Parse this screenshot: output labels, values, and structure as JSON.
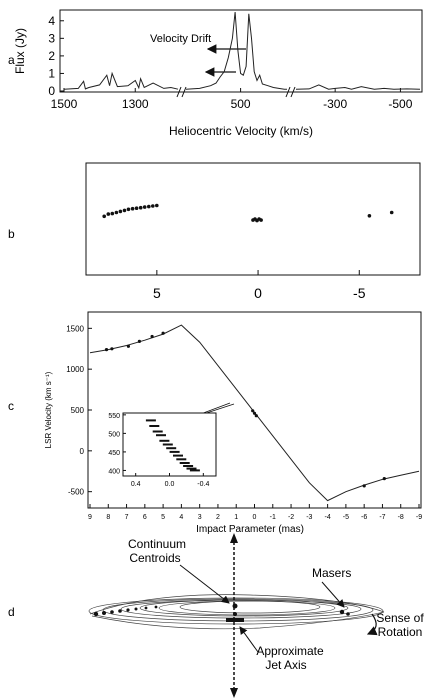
{
  "panel_labels": [
    "a",
    "b",
    "c",
    "d"
  ],
  "chart_data": [
    {
      "id": "a",
      "type": "line",
      "ylabel": "Flux (Jy)",
      "xlabel": "Heliocentric Velocity (km/s)",
      "xticks": [
        "1500",
        "1300",
        "500",
        "-300",
        "-500"
      ],
      "yticks": [
        "0",
        "1",
        "2",
        "3",
        "4"
      ],
      "ylim": [
        0,
        4.5
      ],
      "annotation": "Velocity Drift",
      "segments": [
        {
          "xlim": [
            1500,
            1180
          ],
          "x": [
            1500,
            1460,
            1445,
            1440,
            1430,
            1400,
            1380,
            1372,
            1365,
            1350,
            1320,
            1300,
            1290,
            1285,
            1275,
            1250,
            1220,
            1200,
            1180
          ],
          "y": [
            0.1,
            0.15,
            0.55,
            0.12,
            0.2,
            0.35,
            0.9,
            0.3,
            1.0,
            0.25,
            0.3,
            0.6,
            0.18,
            0.7,
            0.2,
            0.45,
            0.15,
            0.2,
            0.1
          ]
        },
        {
          "xlim": [
            700,
            330
          ],
          "x": [
            700,
            650,
            610,
            590,
            575,
            560,
            545,
            530,
            520,
            510,
            500,
            490,
            480,
            470,
            460,
            450,
            440,
            430,
            420,
            400,
            380,
            360,
            340,
            330
          ],
          "y": [
            0.1,
            0.15,
            0.3,
            0.45,
            0.8,
            1.1,
            1.9,
            3.0,
            4.5,
            2.3,
            1.0,
            0.9,
            1.4,
            4.4,
            3.0,
            1.1,
            0.6,
            0.9,
            0.4,
            0.3,
            0.2,
            0.15,
            0.1,
            0.1
          ]
        },
        {
          "xlim": [
            -180,
            -560
          ],
          "x": [
            -180,
            -220,
            -250,
            -280,
            -300,
            -330,
            -350,
            -380,
            -420,
            -450,
            -480,
            -520,
            -560
          ],
          "y": [
            0.1,
            0.12,
            0.35,
            0.1,
            0.15,
            0.2,
            0.1,
            0.25,
            0.1,
            0.15,
            0.1,
            0.12,
            0.1
          ]
        }
      ]
    },
    {
      "id": "b",
      "type": "scatter",
      "xticks": [
        "5",
        "0",
        "-5"
      ],
      "xlim": [
        8.5,
        -8
      ],
      "ylim": [
        -1,
        1
      ],
      "clusters": [
        {
          "x": [
            7.6,
            7.4,
            7.2,
            7.0,
            6.8,
            6.6,
            6.4,
            6.2,
            6.0,
            5.8,
            5.6,
            5.4,
            5.2,
            5.0
          ],
          "y": [
            0.05,
            0.09,
            0.1,
            0.12,
            0.14,
            0.16,
            0.18,
            0.19,
            0.2,
            0.21,
            0.22,
            0.23,
            0.24,
            0.25
          ]
        },
        {
          "x": [
            0.25,
            0.15,
            0.05,
            -0.05,
            -0.15
          ],
          "y": [
            -0.02,
            0.0,
            -0.03,
            0.0,
            -0.02
          ]
        },
        {
          "x": [
            -5.5,
            -6.6
          ],
          "y": [
            0.06,
            0.12
          ]
        }
      ]
    },
    {
      "id": "c",
      "type": "line",
      "ylabel": "LSR Velocity (km s⁻¹)",
      "xlabel": "Impact Parameter (mas)",
      "xticks": [
        "9",
        "8",
        "7",
        "6",
        "5",
        "4",
        "3",
        "2",
        "1",
        "0",
        "-1",
        "-2",
        "-3",
        "-4",
        "-5",
        "-6",
        "-7",
        "-8",
        "-9"
      ],
      "yticks": [
        "-500",
        "0",
        "500",
        "1000",
        "1500"
      ],
      "xlim": [
        9,
        -9
      ],
      "ylim": [
        -700,
        1700
      ],
      "model_x": [
        9,
        8,
        7,
        6,
        5,
        4,
        3,
        0,
        -3,
        -4,
        -5,
        -6,
        -7,
        -8,
        -9
      ],
      "model_y": [
        1200,
        1240,
        1290,
        1355,
        1430,
        1540,
        1330,
        470,
        -390,
        -610,
        -500,
        -420,
        -350,
        -300,
        -250
      ],
      "points": {
        "x": [
          8.1,
          7.8,
          6.9,
          6.3,
          5.6,
          5.0,
          0.1,
          0.0,
          -0.1,
          -6.0,
          -7.1
        ],
        "y": [
          1240,
          1250,
          1280,
          1340,
          1400,
          1440,
          490,
          460,
          430,
          -430,
          -340
        ]
      },
      "inset": {
        "xticks": [
          "0.4",
          "0.0",
          "-0.4"
        ],
        "yticks": [
          "550",
          "500",
          "450",
          "400"
        ],
        "xlim": [
          0.55,
          -0.55
        ],
        "ylim": [
          385,
          555
        ],
        "points": {
          "x": [
            0.22,
            0.18,
            0.14,
            0.1,
            0.06,
            0.02,
            -0.02,
            -0.06,
            -0.1,
            -0.14,
            -0.18,
            -0.22,
            -0.26,
            -0.3
          ],
          "y": [
            535,
            520,
            505,
            495,
            480,
            470,
            460,
            450,
            440,
            430,
            420,
            412,
            405,
            400
          ]
        }
      }
    }
  ],
  "diagram_d": {
    "labels": {
      "continuum": "Continuum\nCentroids",
      "masers": "Masers",
      "rotation": "Sense of\nRotation",
      "jet": "Approximate\nJet Axis"
    }
  }
}
